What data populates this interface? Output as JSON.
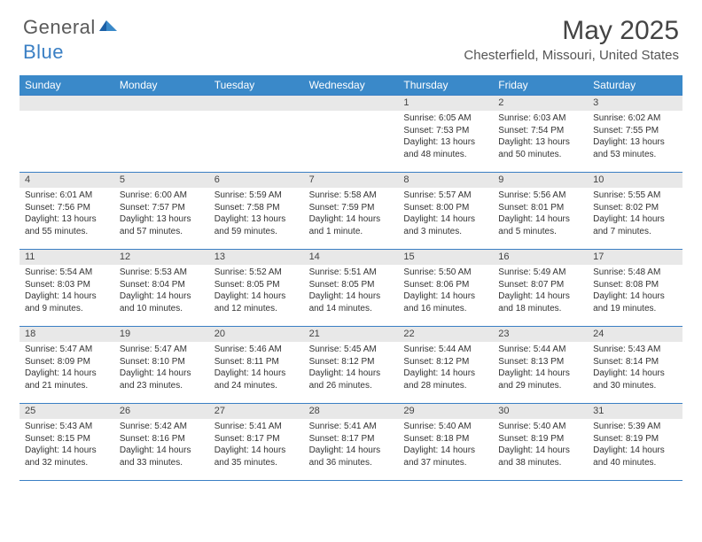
{
  "brand": {
    "part1": "General",
    "part2": "Blue"
  },
  "title": "May 2025",
  "location": "Chesterfield, Missouri, United States",
  "colors": {
    "header_bg": "#3a89c9",
    "row_divider": "#3a7fc4",
    "daynum_bg": "#e8e8e8",
    "text": "#333333",
    "logo_gray": "#5a5a5a",
    "logo_blue": "#3a7fc4"
  },
  "weekdays": [
    "Sunday",
    "Monday",
    "Tuesday",
    "Wednesday",
    "Thursday",
    "Friday",
    "Saturday"
  ],
  "weeks": [
    [
      {
        "empty": true
      },
      {
        "empty": true
      },
      {
        "empty": true
      },
      {
        "empty": true
      },
      {
        "day": "1",
        "sunrise": "Sunrise: 6:05 AM",
        "sunset": "Sunset: 7:53 PM",
        "daylight": "Daylight: 13 hours and 48 minutes."
      },
      {
        "day": "2",
        "sunrise": "Sunrise: 6:03 AM",
        "sunset": "Sunset: 7:54 PM",
        "daylight": "Daylight: 13 hours and 50 minutes."
      },
      {
        "day": "3",
        "sunrise": "Sunrise: 6:02 AM",
        "sunset": "Sunset: 7:55 PM",
        "daylight": "Daylight: 13 hours and 53 minutes."
      }
    ],
    [
      {
        "day": "4",
        "sunrise": "Sunrise: 6:01 AM",
        "sunset": "Sunset: 7:56 PM",
        "daylight": "Daylight: 13 hours and 55 minutes."
      },
      {
        "day": "5",
        "sunrise": "Sunrise: 6:00 AM",
        "sunset": "Sunset: 7:57 PM",
        "daylight": "Daylight: 13 hours and 57 minutes."
      },
      {
        "day": "6",
        "sunrise": "Sunrise: 5:59 AM",
        "sunset": "Sunset: 7:58 PM",
        "daylight": "Daylight: 13 hours and 59 minutes."
      },
      {
        "day": "7",
        "sunrise": "Sunrise: 5:58 AM",
        "sunset": "Sunset: 7:59 PM",
        "daylight": "Daylight: 14 hours and 1 minute."
      },
      {
        "day": "8",
        "sunrise": "Sunrise: 5:57 AM",
        "sunset": "Sunset: 8:00 PM",
        "daylight": "Daylight: 14 hours and 3 minutes."
      },
      {
        "day": "9",
        "sunrise": "Sunrise: 5:56 AM",
        "sunset": "Sunset: 8:01 PM",
        "daylight": "Daylight: 14 hours and 5 minutes."
      },
      {
        "day": "10",
        "sunrise": "Sunrise: 5:55 AM",
        "sunset": "Sunset: 8:02 PM",
        "daylight": "Daylight: 14 hours and 7 minutes."
      }
    ],
    [
      {
        "day": "11",
        "sunrise": "Sunrise: 5:54 AM",
        "sunset": "Sunset: 8:03 PM",
        "daylight": "Daylight: 14 hours and 9 minutes."
      },
      {
        "day": "12",
        "sunrise": "Sunrise: 5:53 AM",
        "sunset": "Sunset: 8:04 PM",
        "daylight": "Daylight: 14 hours and 10 minutes."
      },
      {
        "day": "13",
        "sunrise": "Sunrise: 5:52 AM",
        "sunset": "Sunset: 8:05 PM",
        "daylight": "Daylight: 14 hours and 12 minutes."
      },
      {
        "day": "14",
        "sunrise": "Sunrise: 5:51 AM",
        "sunset": "Sunset: 8:05 PM",
        "daylight": "Daylight: 14 hours and 14 minutes."
      },
      {
        "day": "15",
        "sunrise": "Sunrise: 5:50 AM",
        "sunset": "Sunset: 8:06 PM",
        "daylight": "Daylight: 14 hours and 16 minutes."
      },
      {
        "day": "16",
        "sunrise": "Sunrise: 5:49 AM",
        "sunset": "Sunset: 8:07 PM",
        "daylight": "Daylight: 14 hours and 18 minutes."
      },
      {
        "day": "17",
        "sunrise": "Sunrise: 5:48 AM",
        "sunset": "Sunset: 8:08 PM",
        "daylight": "Daylight: 14 hours and 19 minutes."
      }
    ],
    [
      {
        "day": "18",
        "sunrise": "Sunrise: 5:47 AM",
        "sunset": "Sunset: 8:09 PM",
        "daylight": "Daylight: 14 hours and 21 minutes."
      },
      {
        "day": "19",
        "sunrise": "Sunrise: 5:47 AM",
        "sunset": "Sunset: 8:10 PM",
        "daylight": "Daylight: 14 hours and 23 minutes."
      },
      {
        "day": "20",
        "sunrise": "Sunrise: 5:46 AM",
        "sunset": "Sunset: 8:11 PM",
        "daylight": "Daylight: 14 hours and 24 minutes."
      },
      {
        "day": "21",
        "sunrise": "Sunrise: 5:45 AM",
        "sunset": "Sunset: 8:12 PM",
        "daylight": "Daylight: 14 hours and 26 minutes."
      },
      {
        "day": "22",
        "sunrise": "Sunrise: 5:44 AM",
        "sunset": "Sunset: 8:12 PM",
        "daylight": "Daylight: 14 hours and 28 minutes."
      },
      {
        "day": "23",
        "sunrise": "Sunrise: 5:44 AM",
        "sunset": "Sunset: 8:13 PM",
        "daylight": "Daylight: 14 hours and 29 minutes."
      },
      {
        "day": "24",
        "sunrise": "Sunrise: 5:43 AM",
        "sunset": "Sunset: 8:14 PM",
        "daylight": "Daylight: 14 hours and 30 minutes."
      }
    ],
    [
      {
        "day": "25",
        "sunrise": "Sunrise: 5:43 AM",
        "sunset": "Sunset: 8:15 PM",
        "daylight": "Daylight: 14 hours and 32 minutes."
      },
      {
        "day": "26",
        "sunrise": "Sunrise: 5:42 AM",
        "sunset": "Sunset: 8:16 PM",
        "daylight": "Daylight: 14 hours and 33 minutes."
      },
      {
        "day": "27",
        "sunrise": "Sunrise: 5:41 AM",
        "sunset": "Sunset: 8:17 PM",
        "daylight": "Daylight: 14 hours and 35 minutes."
      },
      {
        "day": "28",
        "sunrise": "Sunrise: 5:41 AM",
        "sunset": "Sunset: 8:17 PM",
        "daylight": "Daylight: 14 hours and 36 minutes."
      },
      {
        "day": "29",
        "sunrise": "Sunrise: 5:40 AM",
        "sunset": "Sunset: 8:18 PM",
        "daylight": "Daylight: 14 hours and 37 minutes."
      },
      {
        "day": "30",
        "sunrise": "Sunrise: 5:40 AM",
        "sunset": "Sunset: 8:19 PM",
        "daylight": "Daylight: 14 hours and 38 minutes."
      },
      {
        "day": "31",
        "sunrise": "Sunrise: 5:39 AM",
        "sunset": "Sunset: 8:19 PM",
        "daylight": "Daylight: 14 hours and 40 minutes."
      }
    ]
  ]
}
